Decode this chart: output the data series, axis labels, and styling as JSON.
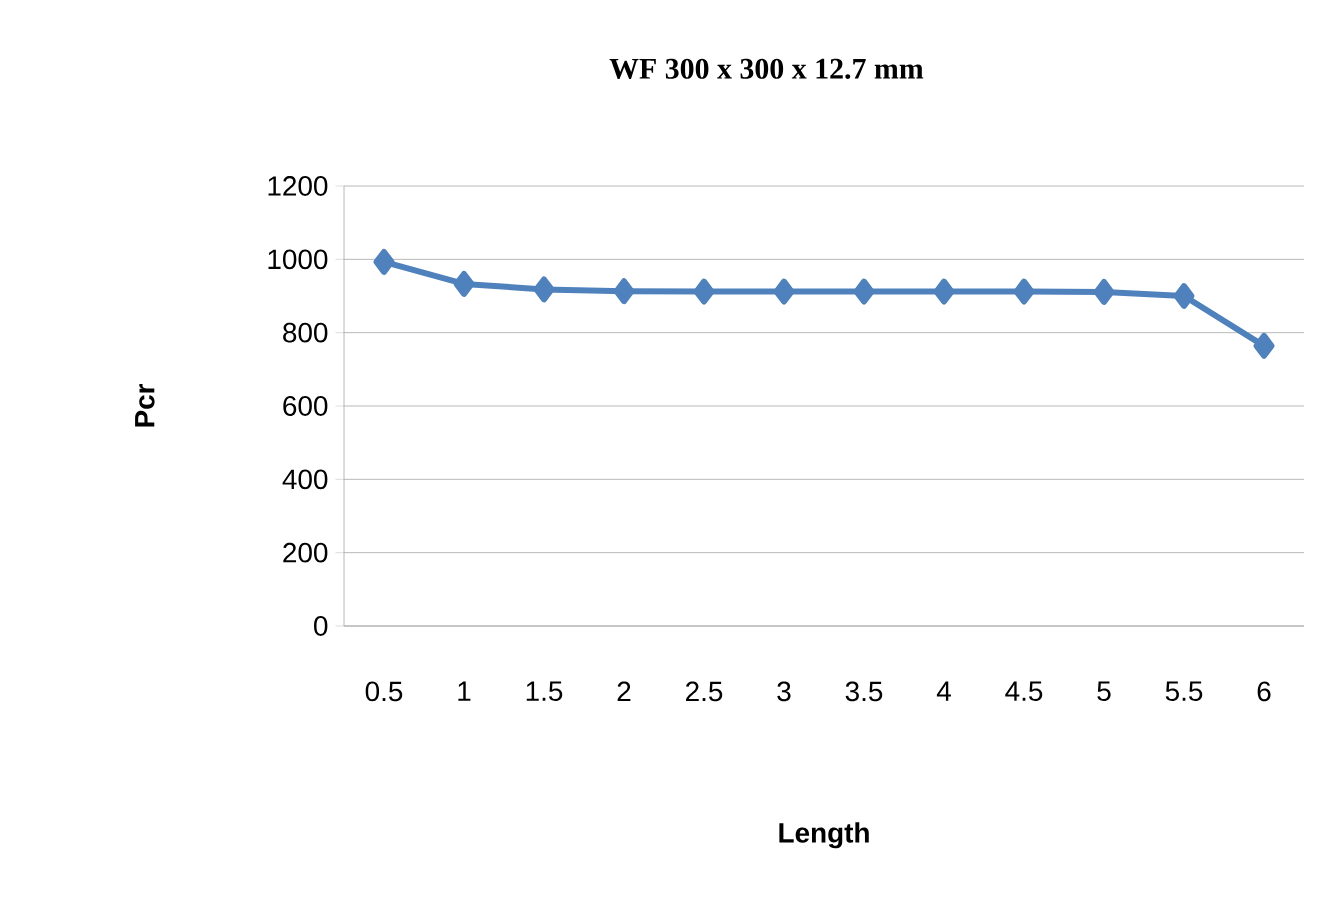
{
  "chart_data": {
    "type": "line",
    "title": "WF 300 x 300 x 12.7 mm",
    "xlabel": "Length",
    "ylabel": "Pcr",
    "categories": [
      "0.5",
      "1",
      "1.5",
      "2",
      "2.5",
      "3",
      "3.5",
      "4",
      "4.5",
      "5",
      "5.5",
      "6"
    ],
    "series": [
      {
        "color": "#4f81bd",
        "values": [
          993,
          933,
          918,
          913,
          912,
          912,
          912,
          912,
          912,
          911,
          900,
          764
        ]
      }
    ],
    "ylim": [
      0,
      1200
    ],
    "yticks": [
      0,
      200,
      400,
      600,
      800,
      1000,
      1200
    ],
    "grid": "y",
    "marker": "diamond",
    "line_style": "solid"
  }
}
